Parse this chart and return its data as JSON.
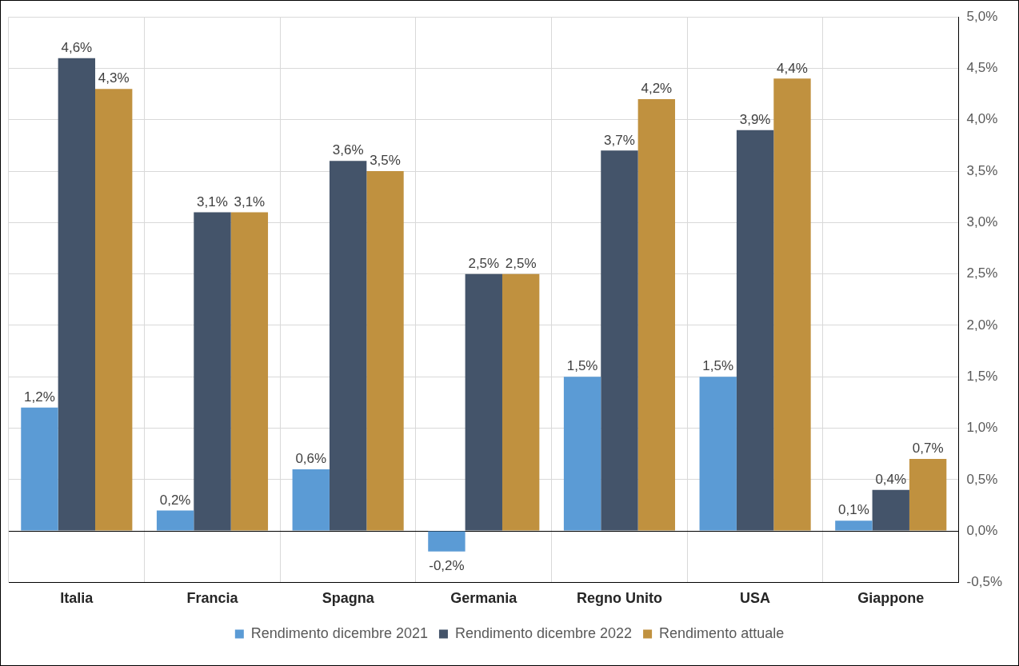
{
  "chart_data": {
    "type": "bar",
    "categories": [
      "Italia",
      "Francia",
      "Spagna",
      "Germania",
      "Regno Unito",
      "USA",
      "Giappone"
    ],
    "series": [
      {
        "name": "Rendimento dicembre 2021",
        "color": "#5b9bd5",
        "values": [
          1.2,
          0.2,
          0.6,
          -0.2,
          1.5,
          1.5,
          0.1
        ],
        "value_labels": [
          "1,2%",
          "0,2%",
          "0,6%",
          "-0,2%",
          "1,5%",
          "1,5%",
          "0,1%"
        ]
      },
      {
        "name": "Rendimento dicembre 2022",
        "color": "#44546a",
        "values": [
          4.6,
          3.1,
          3.6,
          2.5,
          3.7,
          3.9,
          0.4
        ],
        "value_labels": [
          "4,6%",
          "3,1%",
          "3,6%",
          "2,5%",
          "3,7%",
          "3,9%",
          "0,4%"
        ]
      },
      {
        "name": "Rendimento attuale",
        "color": "#c0913f",
        "values": [
          4.3,
          3.1,
          3.5,
          2.5,
          4.2,
          4.4,
          0.7
        ],
        "value_labels": [
          "4,3%",
          "3,1%",
          "3,5%",
          "2,5%",
          "4,2%",
          "4,4%",
          "0,7%"
        ]
      }
    ],
    "ylim": [
      -0.5,
      5
    ],
    "yticks": [
      {
        "value": -0.5,
        "label": "-0,5%"
      },
      {
        "value": 0,
        "label": "0,0%"
      },
      {
        "value": 0.5,
        "label": "0,5%"
      },
      {
        "value": 1,
        "label": "1,0%"
      },
      {
        "value": 1.5,
        "label": "1,5%"
      },
      {
        "value": 2,
        "label": "2,0%"
      },
      {
        "value": 2.5,
        "label": "2,5%"
      },
      {
        "value": 3,
        "label": "3,0%"
      },
      {
        "value": 3.5,
        "label": "3,5%"
      },
      {
        "value": 4,
        "label": "4,0%"
      },
      {
        "value": 4.5,
        "label": "4,5%"
      },
      {
        "value": 5,
        "label": "5,0%"
      }
    ],
    "grid": true,
    "legend": "bottom"
  }
}
